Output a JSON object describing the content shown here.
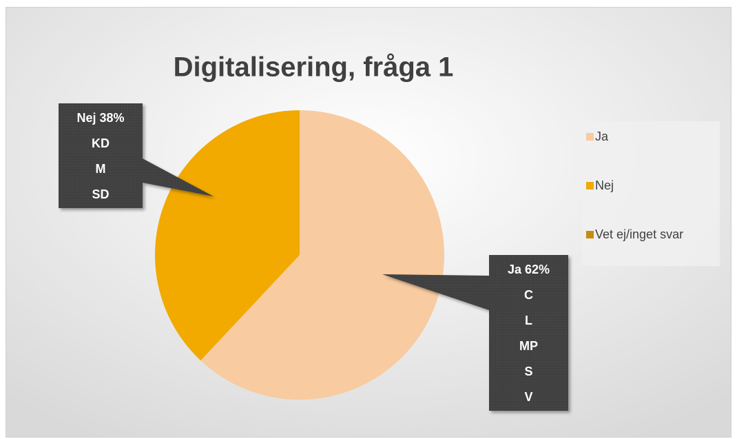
{
  "chart_data": {
    "type": "pie",
    "title": "Digitalisering, fråga 1",
    "categories": [
      "Ja",
      "Nej",
      "Vet ej/inget svar"
    ],
    "values": [
      62,
      38,
      0
    ],
    "value_labels": [
      "Ja 62%",
      "Nej 38%",
      null
    ],
    "parties": [
      [
        "C",
        "L",
        "MP",
        "S",
        "V"
      ],
      [
        "KD",
        "M",
        "SD"
      ],
      []
    ],
    "colors": [
      "#f8cba0",
      "#f2a900",
      "#c98b0f"
    ],
    "legend": "right"
  }
}
